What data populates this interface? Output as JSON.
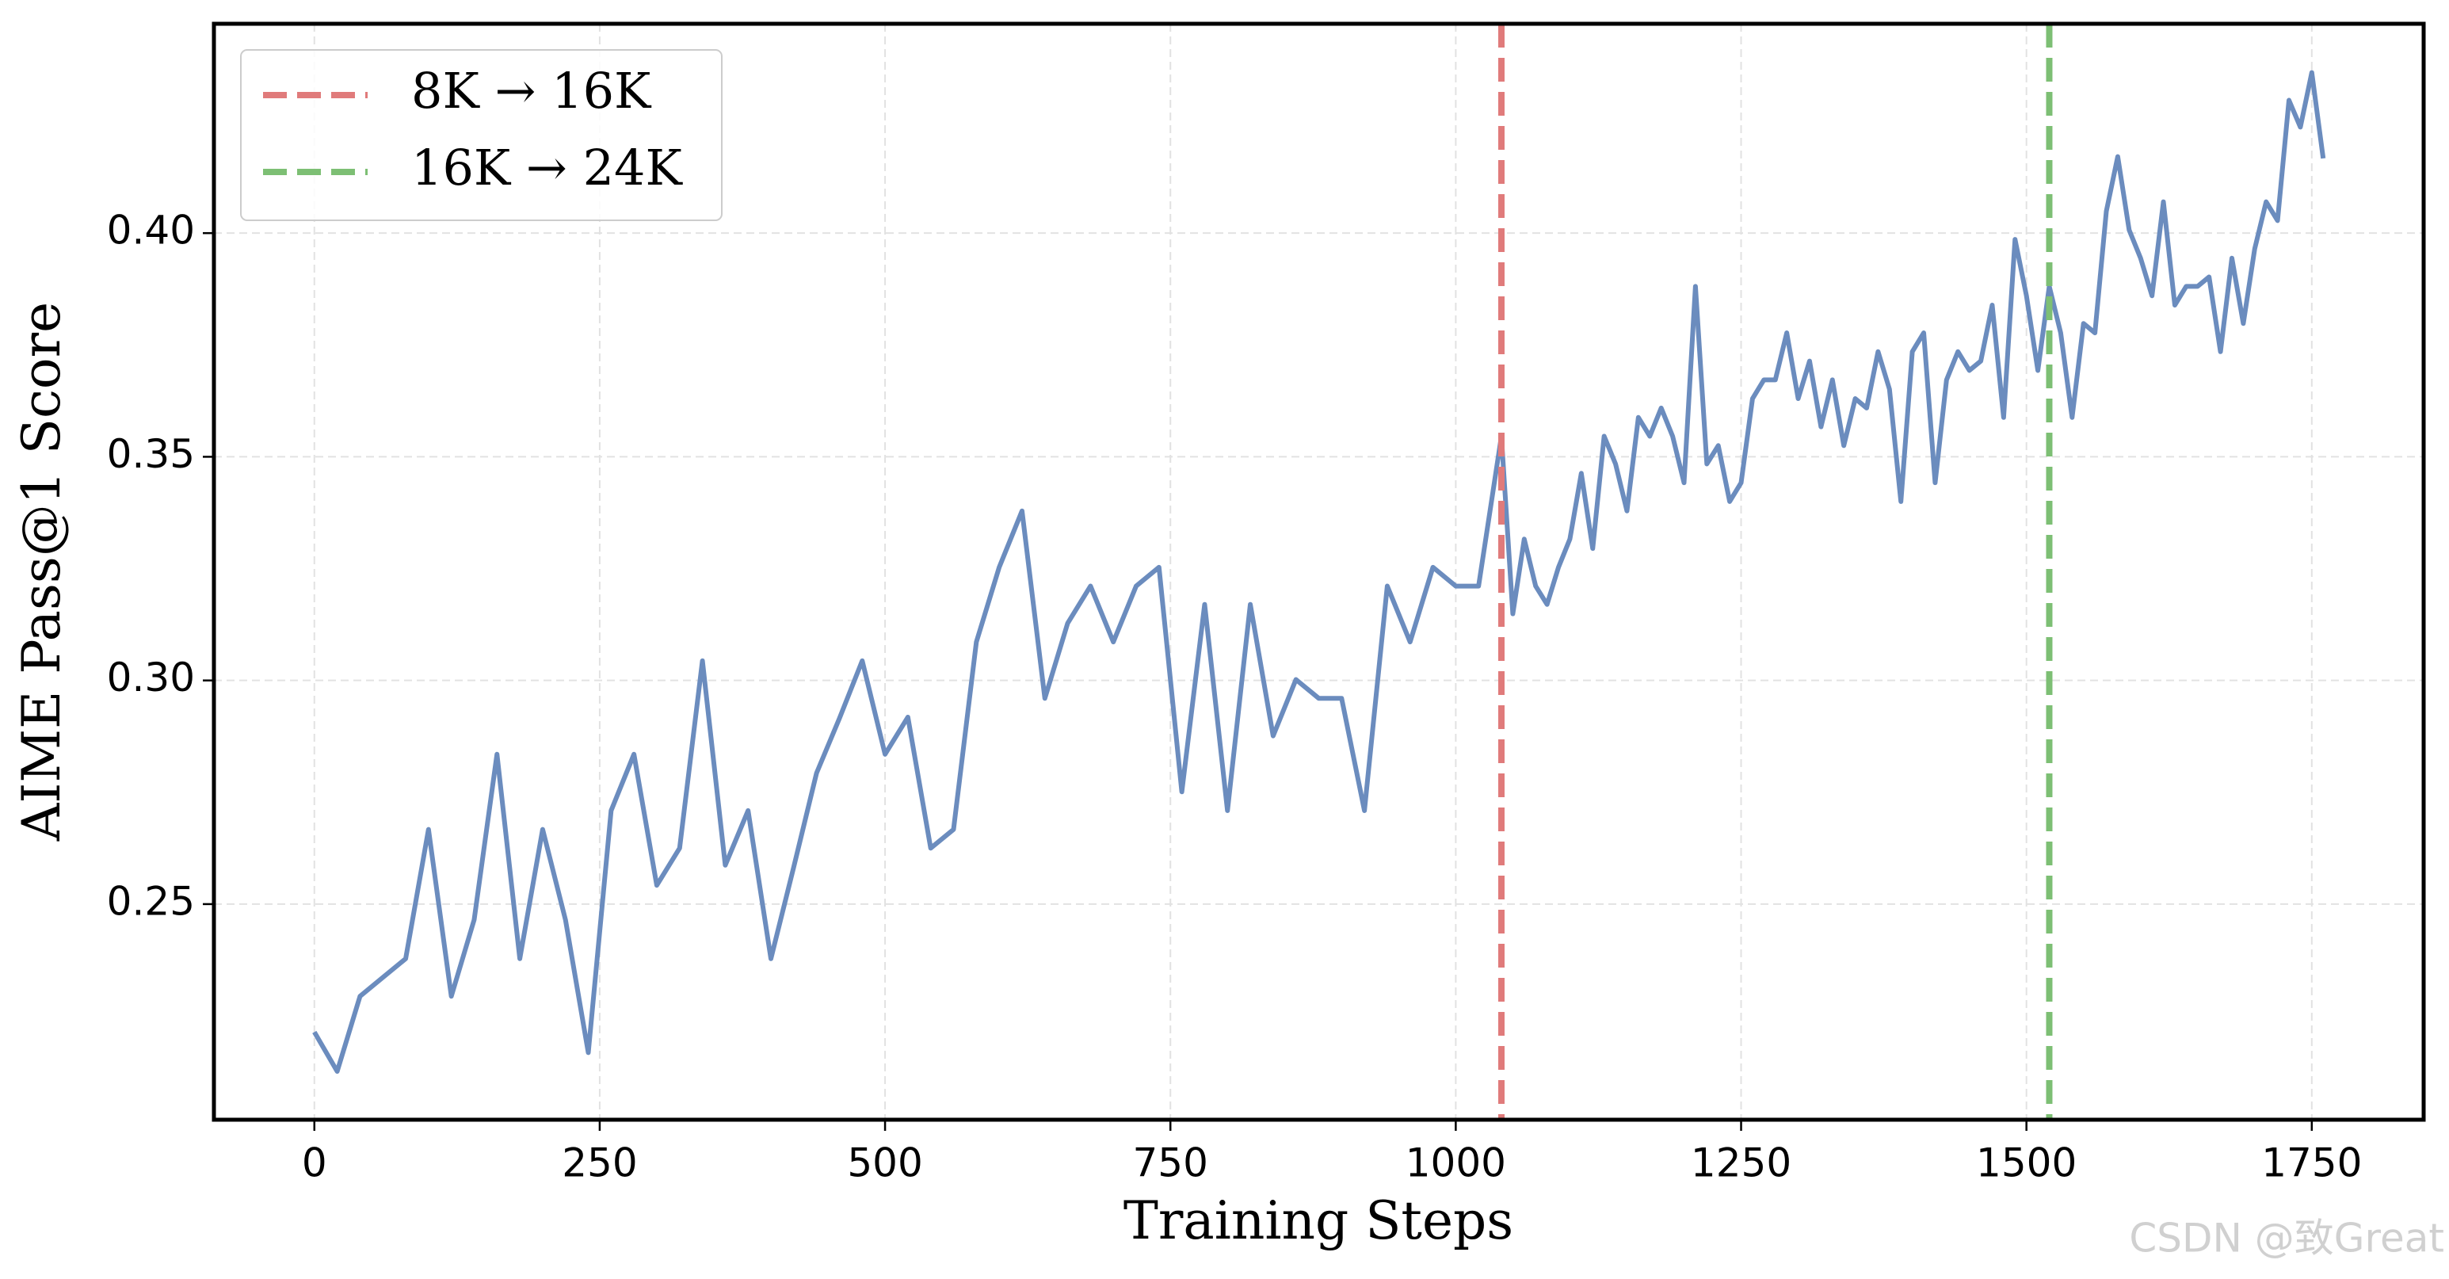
{
  "chart_data": {
    "type": "line",
    "xlabel": "Training Steps",
    "ylabel": "AIME Pass@1 Score",
    "watermark": "CSDN @致Great",
    "x": [
      0,
      20,
      40,
      60,
      80,
      100,
      120,
      140,
      160,
      180,
      200,
      220,
      240,
      260,
      280,
      300,
      320,
      340,
      360,
      380,
      400,
      420,
      440,
      460,
      480,
      500,
      520,
      540,
      560,
      580,
      600,
      620,
      640,
      660,
      680,
      700,
      720,
      740,
      760,
      780,
      800,
      820,
      840,
      860,
      880,
      900,
      920,
      940,
      960,
      980,
      1000,
      1020,
      1040,
      1050,
      1060,
      1070,
      1080,
      1090,
      1100,
      1110,
      1120,
      1130,
      1140,
      1150,
      1160,
      1170,
      1180,
      1190,
      1200,
      1210,
      1220,
      1230,
      1240,
      1250,
      1260,
      1270,
      1280,
      1290,
      1300,
      1310,
      1320,
      1330,
      1340,
      1350,
      1360,
      1370,
      1380,
      1390,
      1400,
      1410,
      1420,
      1430,
      1440,
      1450,
      1460,
      1470,
      1480,
      1490,
      1500,
      1510,
      1520,
      1530,
      1540,
      1550,
      1560,
      1570,
      1580,
      1590,
      1600,
      1610,
      1620,
      1630,
      1640,
      1650,
      1660,
      1670,
      1680,
      1690,
      1700,
      1710,
      1720,
      1730,
      1740,
      1750,
      1760
    ],
    "series": [
      {
        "color": "#6b8cbe",
        "values": [
          0.2214,
          0.2126,
          0.2294,
          0.2336,
          0.2378,
          0.2667,
          0.2294,
          0.2465,
          0.2835,
          0.2378,
          0.2667,
          0.2465,
          0.2168,
          0.2709,
          0.2835,
          0.2542,
          0.2625,
          0.3044,
          0.2587,
          0.2709,
          0.2378,
          0.2583,
          0.2793,
          0.2915,
          0.3044,
          0.2835,
          0.2918,
          0.2625,
          0.2667,
          0.3086,
          0.3253,
          0.3379,
          0.296,
          0.3128,
          0.3211,
          0.3086,
          0.3211,
          0.3253,
          0.2751,
          0.317,
          0.2709,
          0.317,
          0.2876,
          0.3002,
          0.296,
          0.296,
          0.2709,
          0.3211,
          0.3086,
          0.3253,
          0.3211,
          0.3211,
          0.3546,
          0.3149,
          0.3316,
          0.3211,
          0.317,
          0.3253,
          0.3316,
          0.3463,
          0.3295,
          0.3546,
          0.3484,
          0.3379,
          0.3588,
          0.3546,
          0.3609,
          0.3546,
          0.3442,
          0.3881,
          0.3484,
          0.3525,
          0.34,
          0.3442,
          0.363,
          0.3672,
          0.3672,
          0.3777,
          0.363,
          0.3714,
          0.3567,
          0.3672,
          0.3525,
          0.363,
          0.3609,
          0.3735,
          0.3651,
          0.34,
          0.3735,
          0.3777,
          0.3442,
          0.3672,
          0.3735,
          0.3693,
          0.3714,
          0.3839,
          0.3588,
          0.3986,
          0.386,
          0.3693,
          0.3881,
          0.3777,
          0.3588,
          0.3798,
          0.3777,
          0.4049,
          0.4171,
          0.4007,
          0.3944,
          0.386,
          0.407,
          0.3839,
          0.3881,
          0.3881,
          0.3902,
          0.3735,
          0.3944,
          0.3798,
          0.3965,
          0.407,
          0.4028,
          0.4297,
          0.4237,
          0.4359,
          0.4167
        ]
      }
    ],
    "vlines": [
      {
        "name": "8K → 16K",
        "x": 1040,
        "color": "#e07b7b"
      },
      {
        "name": "16K → 24K",
        "x": 1520,
        "color": "#7dbf74"
      }
    ],
    "xlim": [
      -88,
      1848
    ],
    "ylim": [
      0.2018,
      0.4468
    ],
    "xticks": [
      0,
      250,
      500,
      750,
      1000,
      1250,
      1500,
      1750
    ],
    "yticks": [
      0.25,
      {
        "value": 0.3,
        "label": "0.30"
      },
      0.35,
      {
        "value": 0.4,
        "label": "0.40"
      }
    ],
    "grid": true,
    "legend": "upper left"
  }
}
